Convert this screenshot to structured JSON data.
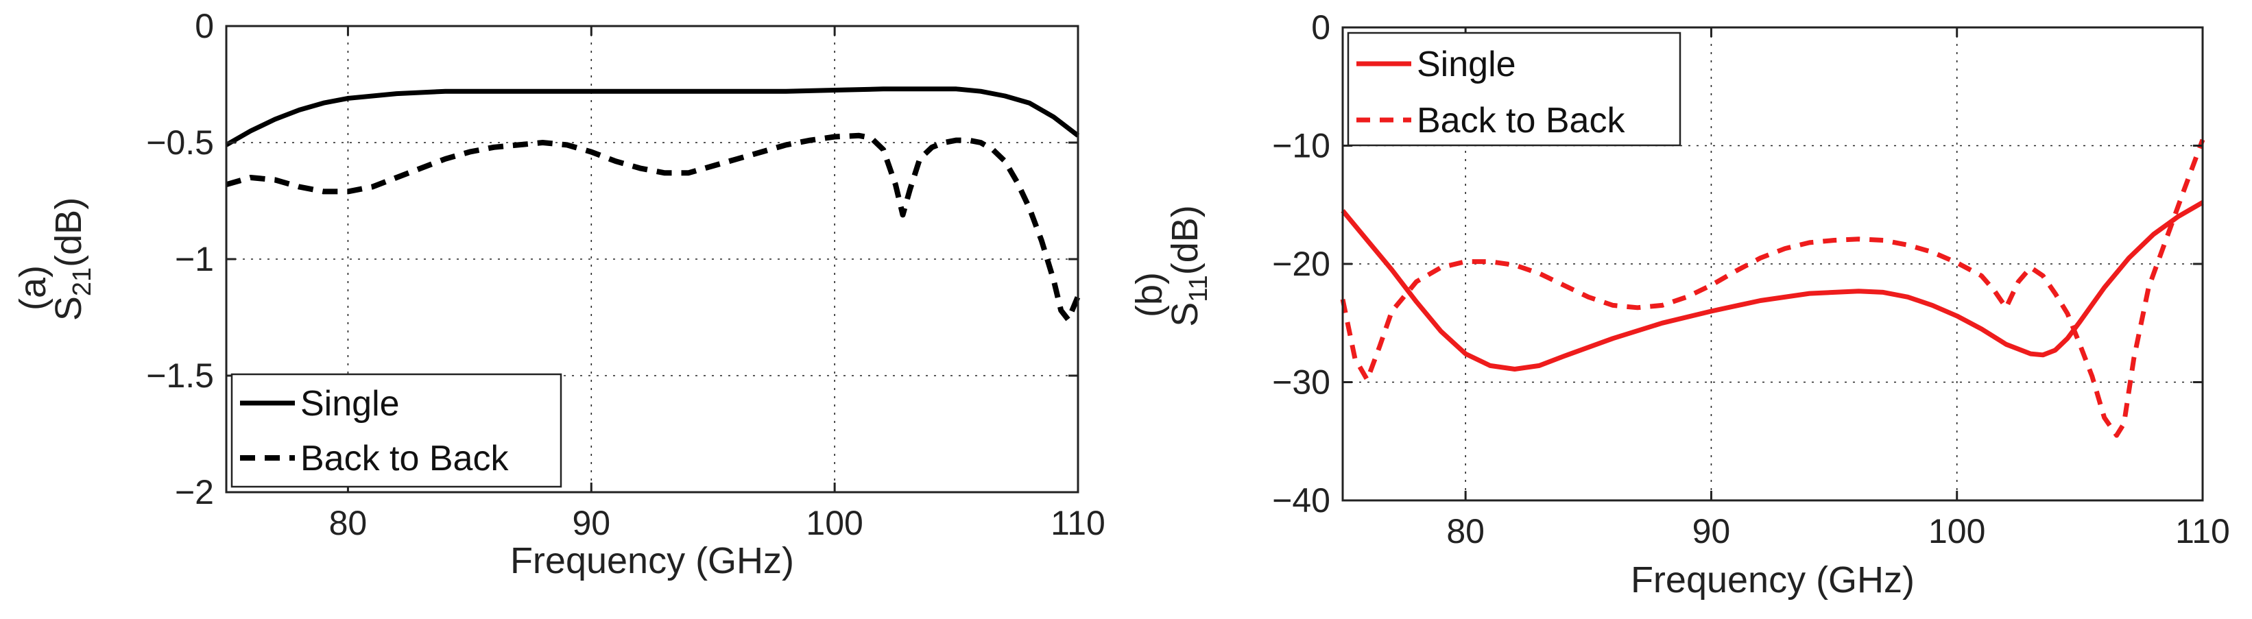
{
  "chart_data": [
    {
      "type": "line",
      "panel": "(a)",
      "ylabel": {
        "main": "S",
        "sub": "21",
        "unit": "(dB)"
      },
      "xlabel": "Frequency (GHz)",
      "xlim": [
        75,
        110
      ],
      "ylim": [
        -2,
        0
      ],
      "xticks": [
        80,
        90,
        100,
        110
      ],
      "yticks": [
        0,
        -0.5,
        -1,
        -1.5,
        -2
      ],
      "xtick_labels": [
        "80",
        "90",
        "100",
        "110"
      ],
      "ytick_labels": [
        "0",
        "−0.5",
        "−1",
        "−1.5",
        "−2"
      ],
      "grid": true,
      "legend_position": "bottom-left",
      "series": [
        {
          "name": "Single",
          "color": "#000000",
          "style": "solid",
          "x": [
            75,
            76,
            77,
            78,
            79,
            80,
            82,
            84,
            86,
            88,
            90,
            92,
            94,
            96,
            98,
            100,
            102,
            104,
            105,
            106,
            107,
            108,
            109,
            110
          ],
          "y": [
            -0.51,
            -0.45,
            -0.4,
            -0.36,
            -0.33,
            -0.31,
            -0.29,
            -0.28,
            -0.28,
            -0.28,
            -0.28,
            -0.28,
            -0.28,
            -0.28,
            -0.28,
            -0.275,
            -0.27,
            -0.27,
            -0.27,
            -0.28,
            -0.3,
            -0.33,
            -0.39,
            -0.47
          ]
        },
        {
          "name": "Back to Back",
          "color": "#000000",
          "style": "dashed",
          "x": [
            75,
            76,
            77,
            78,
            79,
            80,
            81,
            82,
            83,
            84,
            85,
            86,
            87,
            88,
            89,
            90,
            91,
            92,
            93,
            94,
            95,
            96,
            97,
            98,
            99,
            100,
            101,
            101.5,
            102,
            102.5,
            102.8,
            103.1,
            103.5,
            104,
            104.5,
            105,
            105.5,
            106,
            106.5,
            107,
            107.5,
            108,
            108.5,
            109,
            109.3,
            109.6,
            110
          ],
          "y": [
            -0.68,
            -0.65,
            -0.66,
            -0.69,
            -0.71,
            -0.71,
            -0.69,
            -0.65,
            -0.61,
            -0.57,
            -0.54,
            -0.52,
            -0.51,
            -0.5,
            -0.51,
            -0.54,
            -0.58,
            -0.61,
            -0.63,
            -0.63,
            -0.6,
            -0.57,
            -0.54,
            -0.51,
            -0.49,
            -0.475,
            -0.47,
            -0.48,
            -0.53,
            -0.68,
            -0.81,
            -0.7,
            -0.57,
            -0.52,
            -0.5,
            -0.49,
            -0.49,
            -0.5,
            -0.53,
            -0.58,
            -0.67,
            -0.78,
            -0.92,
            -1.09,
            -1.22,
            -1.26,
            -1.16
          ]
        }
      ]
    },
    {
      "type": "line",
      "panel": "(b)",
      "ylabel": {
        "main": "S",
        "sub": "11",
        "unit": "(dB)"
      },
      "xlabel": "Frequency (GHz)",
      "xlim": [
        75,
        110
      ],
      "ylim": [
        -40,
        0
      ],
      "xticks": [
        80,
        90,
        100,
        110
      ],
      "yticks": [
        0,
        -10,
        -20,
        -30,
        -40
      ],
      "xtick_labels": [
        "80",
        "90",
        "100",
        "110"
      ],
      "ytick_labels": [
        "0",
        "−10",
        "−20",
        "−30",
        "−40"
      ],
      "grid": true,
      "legend_position": "top-left",
      "series": [
        {
          "name": "Single",
          "color": "#ee1c1c",
          "style": "solid",
          "x": [
            75,
            76,
            77,
            78,
            79,
            80,
            81,
            82,
            83,
            84,
            86,
            88,
            90,
            92,
            94,
            96,
            97,
            98,
            99,
            100,
            101,
            102,
            103,
            103.5,
            104,
            104.5,
            105,
            106,
            107,
            108,
            109,
            110
          ],
          "y": [
            -15.5,
            -18,
            -20.5,
            -23.2,
            -25.7,
            -27.6,
            -28.6,
            -28.9,
            -28.6,
            -27.8,
            -26.3,
            -25,
            -24,
            -23.1,
            -22.5,
            -22.3,
            -22.4,
            -22.8,
            -23.5,
            -24.4,
            -25.5,
            -26.8,
            -27.6,
            -27.7,
            -27.3,
            -26.3,
            -24.9,
            -22,
            -19.5,
            -17.5,
            -16,
            -14.8
          ]
        },
        {
          "name": "Back to Back",
          "color": "#ee1c1c",
          "style": "dashed",
          "x": [
            75,
            75.5,
            76,
            76.5,
            77,
            78,
            79,
            80,
            81,
            82,
            83,
            84,
            85,
            86,
            87,
            88,
            89,
            90,
            91,
            92,
            93,
            94,
            95,
            96,
            97,
            98,
            99,
            100,
            101,
            101.5,
            102,
            102.5,
            103,
            103.5,
            104,
            104.5,
            105,
            105.5,
            106,
            106.5,
            106.8,
            107.2,
            107.8,
            108.5,
            109.2,
            110
          ],
          "y": [
            -23,
            -28,
            -29.8,
            -27,
            -24,
            -21.5,
            -20.3,
            -19.8,
            -19.8,
            -20.1,
            -20.8,
            -21.8,
            -22.8,
            -23.5,
            -23.7,
            -23.5,
            -22.8,
            -21.8,
            -20.6,
            -19.5,
            -18.7,
            -18.2,
            -18,
            -17.9,
            -18,
            -18.4,
            -19,
            -19.9,
            -21,
            -22.2,
            -23.7,
            -21.5,
            -20.3,
            -21,
            -22.5,
            -24.2,
            -26.8,
            -29.5,
            -33,
            -34.5,
            -33.5,
            -28,
            -22,
            -18,
            -14,
            -9.5
          ]
        }
      ]
    }
  ]
}
